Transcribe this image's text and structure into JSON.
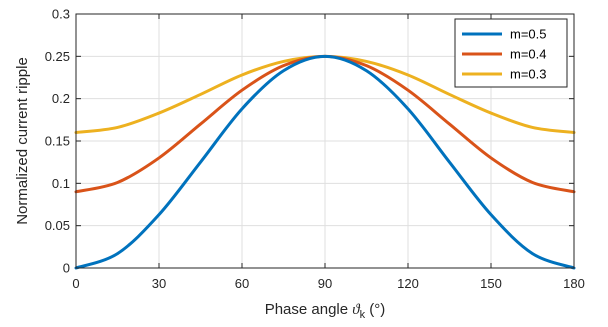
{
  "chart_data": {
    "type": "line",
    "title": "",
    "xlabel_prefix": "Phase angle ",
    "xlabel_symbol": "ϑ",
    "xlabel_subscript": "k",
    "xlabel_suffix": " (°)",
    "ylabel": "Normalized current ripple",
    "xlim": [
      0,
      180
    ],
    "ylim": [
      0,
      0.3
    ],
    "xticks": [
      0,
      30,
      60,
      90,
      120,
      150,
      180
    ],
    "yticks": [
      0,
      0.05,
      0.1,
      0.15,
      0.2,
      0.25,
      0.3
    ],
    "xtick_labels": [
      "0",
      "30",
      "60",
      "90",
      "120",
      "150",
      "180"
    ],
    "ytick_labels": [
      "0",
      "0.05",
      "0.1",
      "0.15",
      "0.2",
      "0.25",
      "0.3"
    ],
    "grid": true,
    "legend_position": "top-right",
    "x": [
      0,
      15,
      30,
      45,
      60,
      75,
      90,
      105,
      120,
      135,
      150,
      165,
      180
    ],
    "series": [
      {
        "name": "m=0.5",
        "color": "#0072BD",
        "values": [
          0.0,
          0.017,
          0.063,
          0.125,
          0.188,
          0.233,
          0.25,
          0.233,
          0.188,
          0.125,
          0.063,
          0.017,
          0.0
        ]
      },
      {
        "name": "m=0.4",
        "color": "#D95319",
        "values": [
          0.09,
          0.101,
          0.13,
          0.17,
          0.21,
          0.239,
          0.25,
          0.239,
          0.21,
          0.17,
          0.13,
          0.101,
          0.09
        ]
      },
      {
        "name": "m=0.3",
        "color": "#EDB120",
        "values": [
          0.16,
          0.166,
          0.183,
          0.205,
          0.228,
          0.244,
          0.25,
          0.244,
          0.228,
          0.205,
          0.183,
          0.166,
          0.16
        ]
      }
    ]
  }
}
